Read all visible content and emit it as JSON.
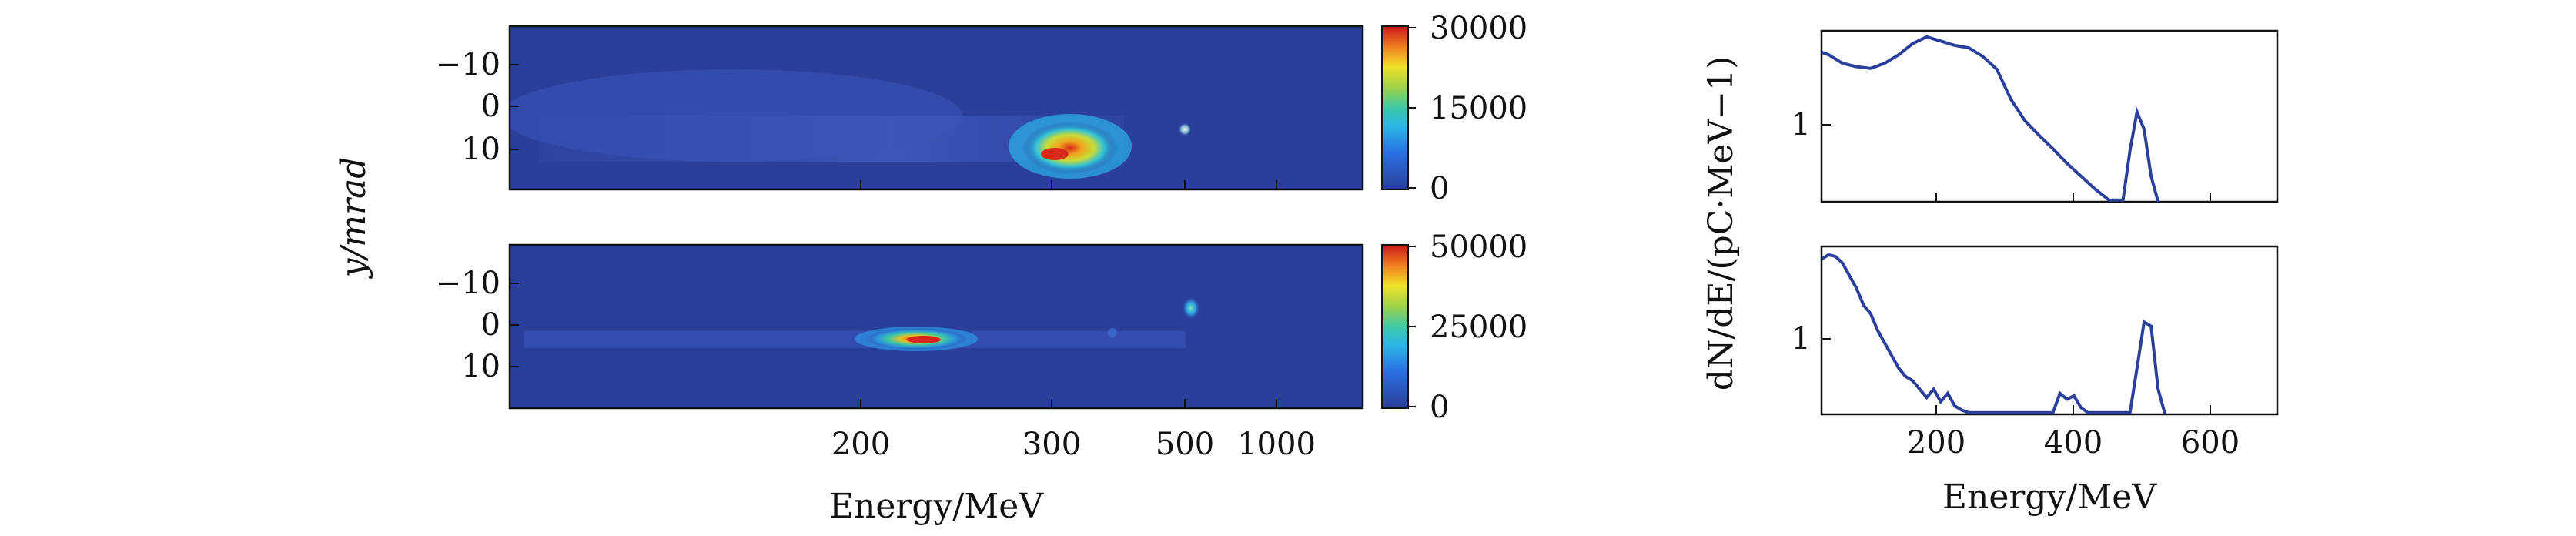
{
  "chart_data": [
    {
      "type": "heatmap",
      "xlabel": "",
      "ylabel": "y/mrad",
      "y_ticks": [
        "−10",
        "0",
        "10"
      ],
      "x_ticks": [],
      "colorbar": {
        "ticks": [
          "30000",
          "15000",
          "0"
        ],
        "max": 30000,
        "colormap": "jet"
      },
      "features": [
        {
          "x_MeV": 300,
          "y_mrad": 10,
          "peak": 30000
        },
        {
          "x_MeV": 500,
          "y_mrad": 5,
          "peak": 6000
        }
      ],
      "background": "#2a3f9a"
    },
    {
      "type": "heatmap",
      "xlabel": "Energy/MeV",
      "ylabel": "y/mrad",
      "y_ticks": [
        "−10",
        "0",
        "10"
      ],
      "x_ticks": [
        "200",
        "300",
        "500",
        "1000"
      ],
      "colorbar": {
        "ticks": [
          "50000",
          "25000",
          "0"
        ],
        "max": 50000,
        "colormap": "jet"
      },
      "features": [
        {
          "x_MeV": 230,
          "y_mrad": 3,
          "peak": 50000
        },
        {
          "x_MeV": 500,
          "y_mrad": -4,
          "peak": 15000
        }
      ],
      "background": "#2a3f9a"
    },
    {
      "type": "line",
      "xlabel": "",
      "ylabel": "dN/dE/(pC·MeV−1)",
      "y_ticks": [
        "1"
      ],
      "x_ticks": [],
      "xlim": [
        50,
        700
      ],
      "series": [
        {
          "color": "#2b3f9c",
          "x": [
            50,
            60,
            80,
            100,
            120,
            140,
            160,
            180,
            200,
            220,
            240,
            260,
            280,
            300,
            320,
            340,
            360,
            380,
            400,
            420,
            440,
            460,
            470,
            480,
            490,
            500,
            510,
            520,
            530
          ],
          "y": [
            1.75,
            1.72,
            1.62,
            1.58,
            1.56,
            1.62,
            1.72,
            1.85,
            1.93,
            1.88,
            1.83,
            1.8,
            1.7,
            1.55,
            1.2,
            0.95,
            0.78,
            0.62,
            0.45,
            0.3,
            0.15,
            0.02,
            0.02,
            0.02,
            0.6,
            1.05,
            0.85,
            0.3,
            0.0
          ]
        }
      ]
    },
    {
      "type": "line",
      "xlabel": "Energy/MeV",
      "ylabel": "",
      "y_ticks": [
        "1"
      ],
      "x_ticks": [
        "200",
        "400",
        "600"
      ],
      "xlim": [
        50,
        700
      ],
      "series": [
        {
          "color": "#2b3f9c",
          "x": [
            50,
            60,
            70,
            80,
            90,
            100,
            110,
            120,
            130,
            140,
            150,
            160,
            170,
            180,
            190,
            200,
            210,
            220,
            230,
            240,
            250,
            260,
            380,
            390,
            400,
            410,
            420,
            430,
            490,
            500,
            510,
            520,
            530,
            540
          ],
          "y": [
            1.85,
            1.9,
            1.88,
            1.8,
            1.65,
            1.5,
            1.3,
            1.2,
            1.0,
            0.85,
            0.7,
            0.55,
            0.45,
            0.4,
            0.3,
            0.2,
            0.3,
            0.15,
            0.25,
            0.1,
            0.05,
            0.02,
            0.02,
            0.25,
            0.18,
            0.22,
            0.08,
            0.02,
            0.02,
            0.55,
            1.1,
            1.05,
            0.3,
            0.0
          ]
        }
      ]
    }
  ]
}
